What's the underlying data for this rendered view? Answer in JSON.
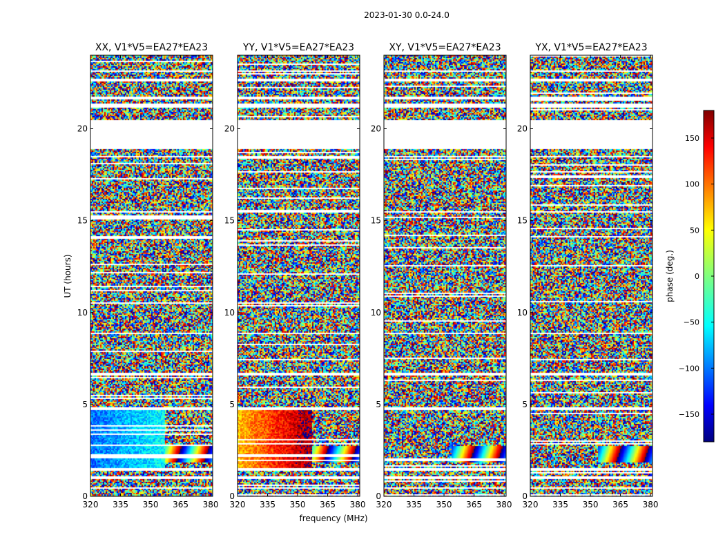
{
  "figure": {
    "suptitle": "2023-01-30 0.0-24.0",
    "xlabel": "frequency (MHz)",
    "ylabel": "UT (hours)",
    "colorbar_label": "phase (deg.)"
  },
  "chart_data": {
    "type": "heatmap",
    "title": "2023-01-30 0.0-24.0",
    "xlabel": "frequency (MHz)",
    "ylabel": "UT (hours)",
    "xlim": [
      320,
      381
    ],
    "ylim": [
      0,
      24
    ],
    "xticks": [
      320,
      335,
      350,
      365,
      380
    ],
    "yticks": [
      0,
      5,
      10,
      15,
      20
    ],
    "colorbar": {
      "label": "phase (deg.)",
      "range": [
        -180,
        180
      ],
      "ticks": [
        150,
        100,
        50,
        0,
        -50,
        -100,
        -150
      ],
      "tick_labels": [
        "150",
        "100",
        "50",
        "0",
        "−50",
        "−100",
        "−150"
      ],
      "colormap": "jet"
    },
    "flagged_time_ranges_hours": [
      [
        0.45,
        0.52
      ],
      [
        1.0,
        1.1
      ],
      [
        1.45,
        1.55
      ],
      [
        1.85,
        1.9
      ],
      [
        4.75,
        4.9
      ],
      [
        6.6,
        6.75
      ],
      [
        8.85,
        8.95
      ],
      [
        15.45,
        15.55
      ],
      [
        18.45,
        18.55
      ],
      [
        18.9,
        20.5
      ],
      [
        21.2,
        21.4
      ],
      [
        21.6,
        21.8
      ],
      [
        22.6,
        22.75
      ],
      [
        23.1,
        23.2
      ]
    ],
    "panels": [
      {
        "title": "XX, V1*V5=EA27*EA23",
        "coherent_phase_deg": -70,
        "coherent_spread_deg": 35
      },
      {
        "title": "YY, V1*V5=EA27*EA23",
        "coherent_phase_deg": 120,
        "coherent_spread_deg": 70
      },
      {
        "title": "XY, V1*V5=EA27*EA23",
        "coherent_phase_deg": null,
        "coherent_spread_deg": null
      },
      {
        "title": "YX, V1*V5=EA27*EA23",
        "coherent_phase_deg": null,
        "coherent_spread_deg": null
      }
    ]
  }
}
